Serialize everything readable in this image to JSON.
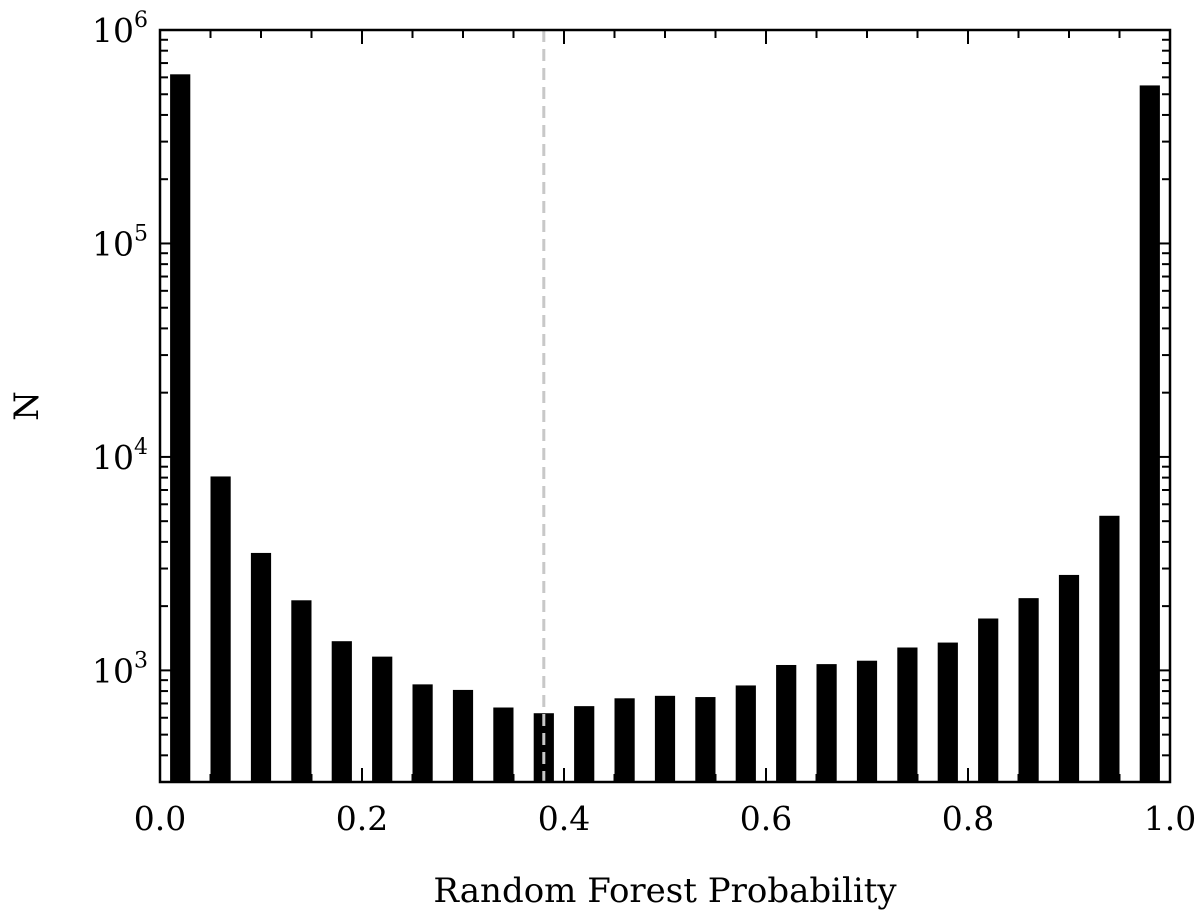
{
  "chart_data": {
    "type": "bar",
    "xlabel": "Random Forest Probability",
    "ylabel": "N",
    "yscale": "log",
    "xlim": [
      0.0,
      1.0
    ],
    "ylim": [
      300,
      1000000
    ],
    "x_ticks": [
      0.0,
      0.2,
      0.4,
      0.6,
      0.8,
      1.0
    ],
    "x_tick_labels": [
      "0.0",
      "0.2",
      "0.4",
      "0.6",
      "0.8",
      "1.0"
    ],
    "y_ticks": [
      {
        "value": 1000,
        "base": "10",
        "exp": "3"
      },
      {
        "value": 10000,
        "base": "10",
        "exp": "4"
      },
      {
        "value": 100000,
        "base": "10",
        "exp": "5"
      },
      {
        "value": 1000000,
        "base": "10",
        "exp": "6"
      }
    ],
    "bin_width": 0.04,
    "bar_color": "#000000",
    "threshold": 0.38,
    "threshold_color": "#c8c8c8",
    "x": [
      0.02,
      0.06,
      0.1,
      0.14,
      0.18,
      0.22,
      0.26,
      0.3,
      0.34,
      0.38,
      0.42,
      0.46,
      0.5,
      0.54,
      0.58,
      0.62,
      0.66,
      0.7,
      0.74,
      0.78,
      0.82,
      0.86,
      0.9,
      0.94,
      0.98
    ],
    "values": [
      620000,
      8100,
      3550,
      2130,
      1370,
      1160,
      860,
      810,
      670,
      630,
      680,
      740,
      760,
      750,
      850,
      1060,
      1070,
      1110,
      1280,
      1350,
      1750,
      2180,
      2800,
      5300,
      550000
    ]
  }
}
